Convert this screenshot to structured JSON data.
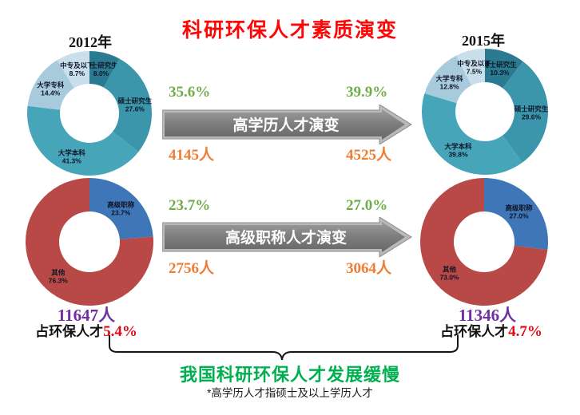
{
  "page_title": "科研环保人才素质演变",
  "years": {
    "left": "2012年",
    "right": "2015年"
  },
  "arrows": [
    {
      "label": "高学历人才演变",
      "from_pct": "35.6%",
      "to_pct": "39.9%",
      "from_count": "4145人",
      "to_count": "4525人"
    },
    {
      "label": "高级职称人才演变",
      "from_pct": "23.7%",
      "to_pct": "27.0%",
      "from_count": "2756人",
      "to_count": "3064人"
    }
  ],
  "totals": {
    "left": {
      "count": "11647人",
      "share_label": "占环保人才",
      "share_pct": "5.4%"
    },
    "right": {
      "count": "11346人",
      "share_label": "占环保人才",
      "share_pct": "4.7%"
    }
  },
  "conclusion": "我国科研环保人才发展缓慢",
  "footnote": "*高学历人才指硕士及以上学历人才",
  "colors": {
    "title_red": "#fe0606",
    "pct_green": "#70ad47",
    "count_orange": "#ed7d31",
    "total_purple": "#7030a0",
    "share_red": "#e30613",
    "conclusion_green": "#00b050",
    "arrow_gray": "#7d7d7d"
  },
  "chart_data": [
    {
      "type": "pie",
      "title": "2012年",
      "labels": [
        "博士研究生",
        "硕士研究生",
        "大学本科",
        "大学专科",
        "中专及以下"
      ],
      "values": [
        8.0,
        27.6,
        41.3,
        14.4,
        8.7
      ],
      "pct_labels": [
        "8.0%",
        "27.6%",
        "41.3%",
        "14.4%",
        "8.7%"
      ],
      "colors": [
        "#2a7b91",
        "#3b96ac",
        "#47a5ba",
        "#a7cbdc",
        "#c9dfeb"
      ]
    },
    {
      "type": "pie",
      "title": "2015年",
      "labels": [
        "博士研究生",
        "硕士研究生",
        "大学本科",
        "大学专科",
        "中专及以下"
      ],
      "values": [
        10.3,
        29.6,
        39.8,
        12.8,
        7.5
      ],
      "pct_labels": [
        "10.3%",
        "29.6%",
        "39.8%",
        "12.8%",
        "7.5%"
      ],
      "colors": [
        "#2a7b91",
        "#3b96ac",
        "#47a5ba",
        "#a7cbdc",
        "#c9dfeb"
      ]
    },
    {
      "type": "pie",
      "title": "2012年",
      "labels": [
        "高级职称",
        "其他"
      ],
      "values": [
        23.7,
        76.3
      ],
      "pct_labels": [
        "23.7%",
        "76.3%"
      ],
      "colors": [
        "#3e76b8",
        "#b84946"
      ]
    },
    {
      "type": "pie",
      "title": "2015年",
      "labels": [
        "高级职称",
        "其他"
      ],
      "values": [
        27.0,
        73.0
      ],
      "pct_labels": [
        "27.0%",
        "73.0%"
      ],
      "colors": [
        "#3e76b8",
        "#b84946"
      ]
    }
  ]
}
